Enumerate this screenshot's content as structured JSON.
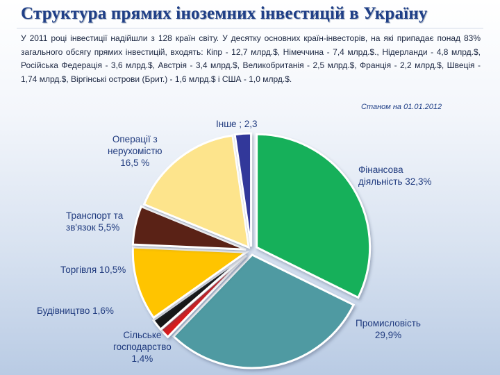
{
  "slide": {
    "title": "Структура прямих іноземних інвестицій в Україну",
    "intro": "У 2011 році інвестиції надійшли з 128 країн світу. У десятку основних країн-інвесторів, на які припадає понад 83% загального обсягу прямих інвестицій, входять: Кіпр - 12,7 млрд.$, Німеччина - 7,4 млрд.$., Нідерланди - 4,8 млрд.$, Російська Федерація - 3,6 млрд.$, Австрія - 3,4 млрд.$, Великобританія - 2,5 млрд.$, Франція - 2,2 млрд.$, Швеція - 1,74 млрд.$, Віргінські острови (Брит.) - 1,6 млрд.$ і США - 1,0 млрд.$.",
    "date_note": "Станом на 01.01.2012"
  },
  "chart_data": {
    "type": "pie",
    "title": "",
    "slices": [
      {
        "name": "Фінансова діяльність",
        "value": 32.3,
        "color": "#13b05a",
        "label_lines": [
          "Фінансова",
          "діяльність 32,3%"
        ]
      },
      {
        "name": "Промисловість",
        "value": 29.9,
        "color": "#4f9aa2",
        "label_lines": [
          "Промисловість",
          "29,9%"
        ]
      },
      {
        "name": "Сільське господарство",
        "value": 1.4,
        "color": "#d81e1e",
        "label_lines": [
          "Сільське",
          "господарство",
          "1,4%"
        ]
      },
      {
        "name": "Будівництво",
        "value": 1.6,
        "color": "#151515",
        "label_lines": [
          "Будівництво  1,6%"
        ]
      },
      {
        "name": "Торгівля",
        "value": 10.5,
        "color": "#ffc400",
        "label_lines": [
          "Торгівля  10,5%"
        ]
      },
      {
        "name": "Транспорт та зв'язок",
        "value": 5.5,
        "color": "#5a2418",
        "label_lines": [
          "Транспорт та",
          "зв'язок  5,5%"
        ]
      },
      {
        "name": "Операції з нерухомістю",
        "value": 16.5,
        "color": "#fde48c",
        "label_lines": [
          "Операції  з",
          "нерухомістю",
          "16,5 %"
        ]
      },
      {
        "name": "Інше",
        "value": 2.3,
        "color": "#33379a",
        "label_lines": [
          "Інше ; 2,3"
        ]
      }
    ]
  }
}
